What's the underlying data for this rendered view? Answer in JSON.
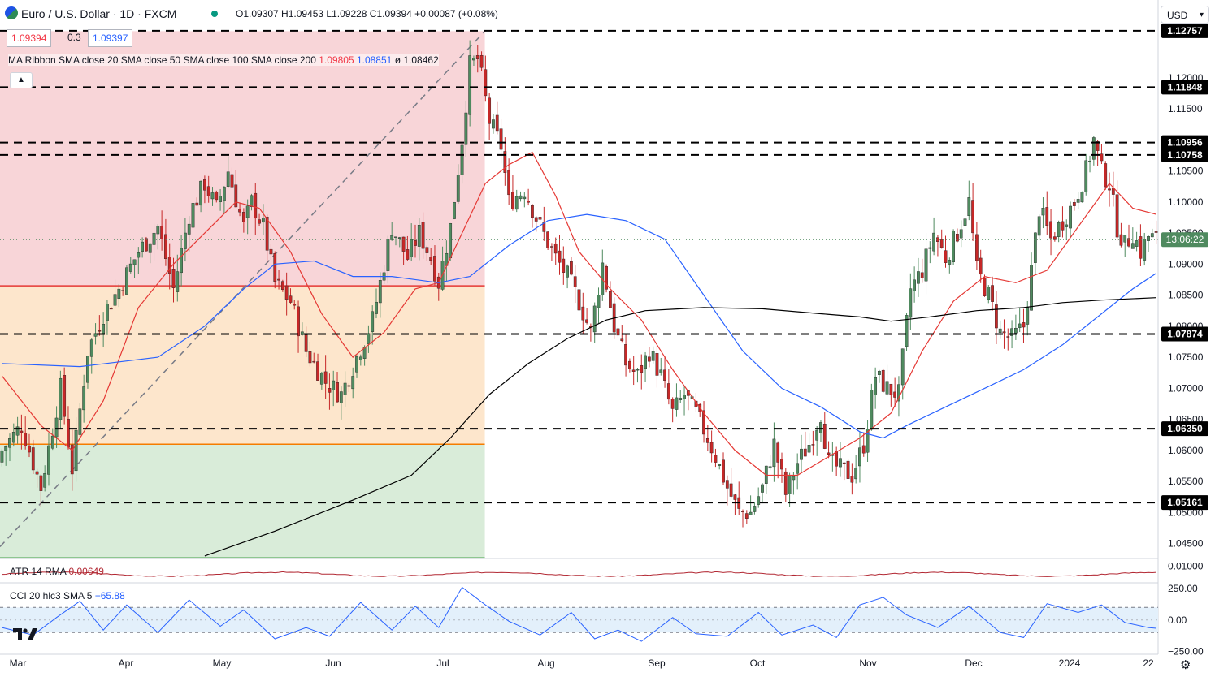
{
  "header": {
    "symbol": "Euro / U.S. Dollar · 1D · FXCM",
    "ohlc_text": "O1.09307 H1.09453 L1.09228 C1.09394 +0.00087 (+0.08%)",
    "sell_price": "1.09394",
    "spread": "0.3",
    "buy_price": "1.09397",
    "currency": "USD"
  },
  "ma_legend": {
    "label": "MA Ribbon SMA close 20 SMA close 50 SMA close 100 SMA close 200",
    "v20": "1.09805",
    "v50": "1.08851",
    "v100": "ø",
    "v200": "1.08462"
  },
  "atr": {
    "label": "ATR 14 RMA",
    "value": "0.00649"
  },
  "cci": {
    "label": "CCI 20 hlc3 SMA 5",
    "value": "−65.88"
  },
  "countdown": "13:06:22",
  "colors": {
    "up": "#4f8a5f",
    "down": "#c62828",
    "sma20": "#e53935",
    "sma50": "#2962ff",
    "sma200": "#000000",
    "atr": "#b22833",
    "cci": "#2962ff",
    "fib_red": "#f8d5d8",
    "fib_orange": "#fde6cc",
    "fib_green": "#d9ecd9"
  },
  "chart_data": {
    "type": "candlestick",
    "title": "Euro / U.S. Dollar · 1D · FXCM",
    "x_ticks": [
      "Mar",
      "Apr",
      "May",
      "Jun",
      "Jul",
      "Aug",
      "Sep",
      "Oct",
      "Nov",
      "Dec",
      "2024",
      "22"
    ],
    "y_ticks": [
      "1.12000",
      "1.11500",
      "1.10500",
      "1.10000",
      "1.09500",
      "1.09000",
      "1.08500",
      "1.08000",
      "1.07500",
      "1.07000",
      "1.06500",
      "1.06000",
      "1.05500",
      "1.05000",
      "1.04500"
    ],
    "ylim": [
      1.0426,
      1.1286
    ],
    "last_price": 1.09394,
    "horizontal_levels": [
      {
        "value": 1.12757,
        "label": "1.12757"
      },
      {
        "value": 1.11848,
        "label": "1.11848"
      },
      {
        "value": 1.10956,
        "label": "1.10956"
      },
      {
        "value": 1.10758,
        "label": "1.10758"
      },
      {
        "value": 1.07874,
        "label": "1.07874"
      },
      {
        "value": 1.0635,
        "label": "1.06350"
      },
      {
        "value": 1.05161,
        "label": "1.05161"
      }
    ],
    "fib_zones": [
      {
        "top": 1.1275,
        "bottom": 1.0865,
        "color": "red"
      },
      {
        "top": 1.0865,
        "bottom": 1.061,
        "color": "orange"
      },
      {
        "top": 1.061,
        "bottom": 1.0425,
        "color": "green"
      }
    ],
    "close_path": [
      [
        0,
        1.06
      ],
      [
        5,
        1.064
      ],
      [
        10,
        1.054
      ],
      [
        15,
        1.07
      ],
      [
        18,
        1.057
      ],
      [
        22,
        1.076
      ],
      [
        26,
        1.082
      ],
      [
        30,
        1.086
      ],
      [
        35,
        1.092
      ],
      [
        40,
        1.096
      ],
      [
        44,
        1.086
      ],
      [
        48,
        1.098
      ],
      [
        52,
        1.103
      ],
      [
        55,
        1.099
      ],
      [
        58,
        1.105
      ],
      [
        62,
        1.096
      ],
      [
        64,
        1.1
      ],
      [
        67,
        1.096
      ],
      [
        70,
        1.087
      ],
      [
        74,
        1.084
      ],
      [
        78,
        1.076
      ],
      [
        83,
        1.071
      ],
      [
        87,
        1.069
      ],
      [
        91,
        1.075
      ],
      [
        95,
        1.081
      ],
      [
        98,
        1.09
      ],
      [
        100,
        1.096
      ],
      [
        104,
        1.091
      ],
      [
        107,
        1.095
      ],
      [
        110,
        1.091
      ],
      [
        112,
        1.087
      ],
      [
        115,
        1.096
      ],
      [
        118,
        1.11
      ],
      [
        120,
        1.122
      ],
      [
        122,
        1.123
      ],
      [
        123,
        1.12
      ],
      [
        125,
        1.113
      ],
      [
        128,
        1.109
      ],
      [
        130,
        1.1
      ],
      [
        134,
        1.102
      ],
      [
        138,
        1.096
      ],
      [
        142,
        1.091
      ],
      [
        145,
        1.088
      ],
      [
        148,
        1.084
      ],
      [
        151,
        1.079
      ],
      [
        154,
        1.09
      ],
      [
        157,
        1.08
      ],
      [
        160,
        1.074
      ],
      [
        163,
        1.072
      ],
      [
        166,
        1.076
      ],
      [
        169,
        1.072
      ],
      [
        172,
        1.066
      ],
      [
        175,
        1.069
      ],
      [
        178,
        1.066
      ],
      [
        181,
        1.062
      ],
      [
        183,
        1.059
      ],
      [
        186,
        1.054
      ],
      [
        189,
        1.05
      ],
      [
        192,
        1.05
      ],
      [
        195,
        1.054
      ],
      [
        198,
        1.061
      ],
      [
        201,
        1.053
      ],
      [
        204,
        1.058
      ],
      [
        207,
        1.061
      ],
      [
        210,
        1.066
      ],
      [
        212,
        1.058
      ],
      [
        215,
        1.057
      ],
      [
        218,
        1.056
      ],
      [
        221,
        1.061
      ],
      [
        224,
        1.072
      ],
      [
        227,
        1.07
      ],
      [
        230,
        1.069
      ],
      [
        233,
        1.086
      ],
      [
        236,
        1.089
      ],
      [
        239,
        1.095
      ],
      [
        242,
        1.091
      ],
      [
        245,
        1.095
      ],
      [
        248,
        1.1
      ],
      [
        250,
        1.089
      ],
      [
        253,
        1.085
      ],
      [
        256,
        1.079
      ],
      [
        259,
        1.078
      ],
      [
        262,
        1.08
      ],
      [
        264,
        1.089
      ],
      [
        266,
        1.099
      ],
      [
        269,
        1.094
      ],
      [
        272,
        1.097
      ],
      [
        275,
        1.1
      ],
      [
        278,
        1.105
      ],
      [
        280,
        1.11
      ],
      [
        282,
        1.105
      ],
      [
        284,
        1.103
      ],
      [
        286,
        1.096
      ],
      [
        288,
        1.093
      ],
      [
        290,
        1.095
      ],
      [
        292,
        1.092
      ],
      [
        294,
        1.0945
      ],
      [
        296,
        1.0939
      ]
    ],
    "n_bars": 297,
    "sma20_path": [
      [
        0,
        1.072
      ],
      [
        10,
        1.064
      ],
      [
        18,
        1.06
      ],
      [
        26,
        1.068
      ],
      [
        35,
        1.083
      ],
      [
        44,
        1.09
      ],
      [
        52,
        1.095
      ],
      [
        60,
        1.1
      ],
      [
        66,
        1.099
      ],
      [
        74,
        1.092
      ],
      [
        82,
        1.082
      ],
      [
        90,
        1.075
      ],
      [
        98,
        1.079
      ],
      [
        106,
        1.086
      ],
      [
        112,
        1.087
      ],
      [
        118,
        1.095
      ],
      [
        124,
        1.103
      ],
      [
        130,
        1.106
      ],
      [
        136,
        1.108
      ],
      [
        142,
        1.101
      ],
      [
        148,
        1.092
      ],
      [
        156,
        1.086
      ],
      [
        164,
        1.081
      ],
      [
        172,
        1.073
      ],
      [
        180,
        1.066
      ],
      [
        188,
        1.06
      ],
      [
        196,
        1.056
      ],
      [
        204,
        1.056
      ],
      [
        212,
        1.059
      ],
      [
        220,
        1.062
      ],
      [
        228,
        1.066
      ],
      [
        236,
        1.076
      ],
      [
        244,
        1.084
      ],
      [
        252,
        1.088
      ],
      [
        260,
        1.087
      ],
      [
        268,
        1.089
      ],
      [
        276,
        1.096
      ],
      [
        284,
        1.103
      ],
      [
        290,
        1.099
      ],
      [
        296,
        1.098
      ]
    ],
    "sma50_path": [
      [
        0,
        1.074
      ],
      [
        20,
        1.0735
      ],
      [
        40,
        1.075
      ],
      [
        52,
        1.08
      ],
      [
        62,
        1.086
      ],
      [
        70,
        1.09
      ],
      [
        80,
        1.0905
      ],
      [
        90,
        1.088
      ],
      [
        100,
        1.088
      ],
      [
        112,
        1.087
      ],
      [
        120,
        1.088
      ],
      [
        130,
        1.093
      ],
      [
        140,
        1.097
      ],
      [
        150,
        1.098
      ],
      [
        160,
        1.097
      ],
      [
        170,
        1.094
      ],
      [
        180,
        1.085
      ],
      [
        190,
        1.076
      ],
      [
        200,
        1.07
      ],
      [
        210,
        1.067
      ],
      [
        220,
        1.063
      ],
      [
        226,
        1.062
      ],
      [
        232,
        1.064
      ],
      [
        242,
        1.067
      ],
      [
        252,
        1.07
      ],
      [
        262,
        1.073
      ],
      [
        272,
        1.077
      ],
      [
        282,
        1.082
      ],
      [
        290,
        1.086
      ],
      [
        296,
        1.0885
      ]
    ],
    "sma200_path": [
      [
        52,
        1.043
      ],
      [
        70,
        1.047
      ],
      [
        90,
        1.052
      ],
      [
        105,
        1.056
      ],
      [
        115,
        1.062
      ],
      [
        125,
        1.069
      ],
      [
        135,
        1.074
      ],
      [
        145,
        1.078
      ],
      [
        155,
        1.081
      ],
      [
        165,
        1.0825
      ],
      [
        180,
        1.083
      ],
      [
        195,
        1.0828
      ],
      [
        210,
        1.082
      ],
      [
        220,
        1.0815
      ],
      [
        228,
        1.0808
      ],
      [
        238,
        1.0815
      ],
      [
        250,
        1.0825
      ],
      [
        262,
        1.083
      ],
      [
        272,
        1.0838
      ],
      [
        282,
        1.0842
      ],
      [
        296,
        1.0846
      ]
    ],
    "atr": {
      "ylim": [
        0.004,
        0.0125
      ],
      "last": 0.00649,
      "tick": "0.01000"
    },
    "cci": {
      "ylim": [
        -260,
        270
      ],
      "bands": [
        100,
        -100
      ],
      "last": -65.88,
      "ticks": [
        "250.00",
        "0.00",
        "−250.00"
      ],
      "path": [
        [
          0,
          -60
        ],
        [
          8,
          -120
        ],
        [
          14,
          20
        ],
        [
          20,
          150
        ],
        [
          26,
          -80
        ],
        [
          32,
          120
        ],
        [
          40,
          -100
        ],
        [
          48,
          160
        ],
        [
          56,
          -50
        ],
        [
          62,
          80
        ],
        [
          70,
          -150
        ],
        [
          78,
          -60
        ],
        [
          84,
          -130
        ],
        [
          92,
          140
        ],
        [
          100,
          -80
        ],
        [
          106,
          110
        ],
        [
          112,
          -60
        ],
        [
          118,
          260
        ],
        [
          124,
          120
        ],
        [
          130,
          -10
        ],
        [
          138,
          -120
        ],
        [
          146,
          60
        ],
        [
          152,
          -150
        ],
        [
          158,
          -80
        ],
        [
          164,
          -170
        ],
        [
          172,
          20
        ],
        [
          178,
          -110
        ],
        [
          186,
          -130
        ],
        [
          194,
          60
        ],
        [
          200,
          -120
        ],
        [
          208,
          -40
        ],
        [
          214,
          -140
        ],
        [
          220,
          120
        ],
        [
          226,
          180
        ],
        [
          232,
          40
        ],
        [
          240,
          -60
        ],
        [
          248,
          110
        ],
        [
          256,
          -100
        ],
        [
          262,
          -140
        ],
        [
          268,
          130
        ],
        [
          276,
          60
        ],
        [
          282,
          120
        ],
        [
          288,
          -20
        ],
        [
          294,
          -60
        ],
        [
          296,
          -66
        ]
      ]
    }
  }
}
